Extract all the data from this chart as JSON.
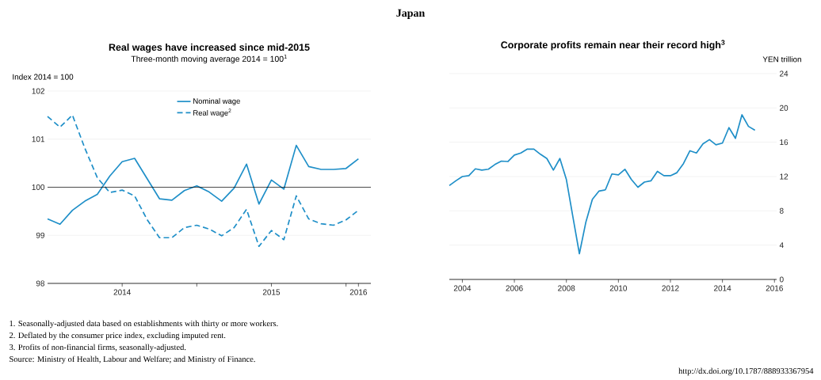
{
  "chart_data": [
    {
      "type": "line",
      "title": "Real wages have increased since mid-2015",
      "subtitle": "Three-month moving average 2014 = 100$^{1}$",
      "ylabel": "Index 2014 = 100",
      "annotations": [
        "Japan",
        "1.  Seasonally-adjusted data based on establishments with thirty or more workers.",
        "2.  Deflated by the consumer price index, excluding imputed rent.",
        "3.  Profits of non-financial firms, seasonally-adjusted.",
        "Source:  Ministry of Health, Labour and Welfare; and Ministry of Finance.",
        "http://dx.doi.org/10.1787/888933367954"
      ],
      "x": [
        "2014-01",
        "2014-02",
        "2014-03",
        "2014-04",
        "2014-05",
        "2014-06",
        "2014-07",
        "2014-08",
        "2014-09",
        "2014-10",
        "2014-11",
        "2014-12",
        "2015-01",
        "2015-02",
        "2015-03",
        "2015-04",
        "2015-05",
        "2015-06",
        "2015-07",
        "2015-08",
        "2015-09",
        "2015-10",
        "2015-11",
        "2015-12",
        "2016-01",
        "2016-02"
      ],
      "series": [
        {
          "name": "Nominal wage",
          "color": "#1f8fc8",
          "line_style": "solid",
          "values": [
            99.34,
            99.23,
            99.52,
            99.71,
            99.85,
            100.23,
            100.53,
            100.6,
            100.18,
            99.76,
            99.73,
            99.93,
            100.03,
            99.9,
            99.71,
            99.98,
            100.48,
            99.65,
            100.15,
            99.96,
            100.87,
            100.43,
            100.37,
            100.37,
            100.39,
            100.59
          ]
        },
        {
          "name": "Real wage$^{2}$",
          "color": "#1f8fc8",
          "line_style": "dashed",
          "values": [
            101.47,
            101.25,
            101.5,
            100.81,
            100.2,
            99.89,
            99.94,
            99.82,
            99.33,
            98.95,
            98.95,
            99.16,
            99.21,
            99.13,
            98.99,
            99.16,
            99.54,
            98.77,
            99.1,
            98.91,
            99.82,
            99.34,
            99.24,
            99.21,
            99.32,
            99.52
          ]
        }
      ],
      "xlim": [
        "2014-01",
        "2016-03"
      ],
      "xticks": [
        {
          "value": "2014-07",
          "label": "2014"
        },
        {
          "value": "2015",
          "label": null
        },
        {
          "value": "2015-07",
          "label": "2015"
        },
        {
          "value": "2016",
          "label": null
        },
        {
          "value": "2016-02",
          "label": "2016"
        }
      ],
      "ylim": [
        98,
        102
      ],
      "yticks": [
        98,
        99,
        100,
        101,
        102
      ],
      "ref_lines": [
        {
          "axis": "y",
          "value": 100,
          "color": "#000000"
        }
      ],
      "grid": "y",
      "legend": "top",
      "marker": "none"
    },
    {
      "type": "line",
      "title": "Corporate profits remain near their record high$^{3}$",
      "ylabel": "YEN trillion",
      "color": "#1f8fc8",
      "x": [
        "2004-01",
        "2004-04",
        "2004-07",
        "2004-10",
        "2005-01",
        "2005-04",
        "2005-07",
        "2005-10",
        "2006-01",
        "2006-04",
        "2006-07",
        "2006-10",
        "2007-01",
        "2007-04",
        "2007-07",
        "2007-10",
        "2008-01",
        "2008-04",
        "2008-07",
        "2008-10",
        "2009-01",
        "2009-04",
        "2009-07",
        "2009-10",
        "2010-01",
        "2010-04",
        "2010-07",
        "2010-10",
        "2011-01",
        "2011-04",
        "2011-07",
        "2011-10",
        "2012-01",
        "2012-04",
        "2012-07",
        "2012-10",
        "2013-01",
        "2013-04",
        "2013-07",
        "2013-10",
        "2014-01",
        "2014-04",
        "2014-07",
        "2014-10",
        "2015-01",
        "2015-04",
        "2015-07",
        "2015-10"
      ],
      "values": [
        10.95,
        11.5,
        12.0,
        12.1,
        12.9,
        12.75,
        12.85,
        13.4,
        13.8,
        13.75,
        14.5,
        14.75,
        15.2,
        15.2,
        14.6,
        14.1,
        12.75,
        14.1,
        11.65,
        7.3,
        3.0,
        6.7,
        9.35,
        10.3,
        10.45,
        12.3,
        12.2,
        12.85,
        11.65,
        10.75,
        11.35,
        11.5,
        12.6,
        12.1,
        12.1,
        12.45,
        13.5,
        15.0,
        14.75,
        15.8,
        16.3,
        15.7,
        15.9,
        17.7,
        16.45,
        19.2,
        17.85,
        17.4
      ],
      "xlim": [
        "2004",
        "2016-08"
      ],
      "xticks": [
        {
          "value": "2004-07",
          "label": "2004"
        },
        {
          "value": "2006-07",
          "label": "2006"
        },
        {
          "value": "2008-07",
          "label": "2008"
        },
        {
          "value": "2010-07",
          "label": "2010"
        },
        {
          "value": "2012-07",
          "label": "2012"
        },
        {
          "value": "2014-07",
          "label": "2014"
        },
        {
          "value": "2016-07",
          "label": "2016"
        }
      ],
      "ylim": [
        0,
        24
      ],
      "yticks": [
        0,
        4,
        8,
        12,
        16,
        20,
        24
      ],
      "grid": "y",
      "marker": "none",
      "line_style": "solid"
    }
  ]
}
